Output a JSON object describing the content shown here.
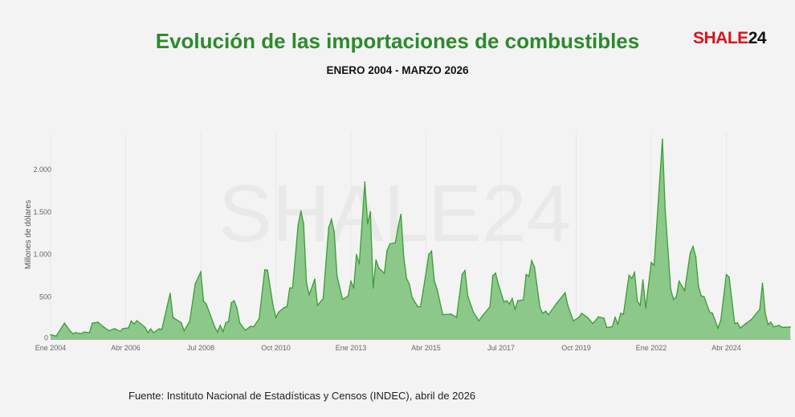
{
  "header": {
    "title": "Evolución de las importaciones de combustibles",
    "subtitle": "ENERO 2004 - MARZO 2026",
    "logo_text": "SHALE24",
    "logo_parts": [
      "SHALE",
      "24"
    ]
  },
  "watermark": "SHALE24",
  "footer": {
    "source": "Fuente: Instituto Nacional de Estadísticas y Censos (INDEC), abril de 2026"
  },
  "colors": {
    "title": "#2c8a2c",
    "line": "#3a9e34",
    "fill": "#8cc88a",
    "logo_red": "#d8141c"
  },
  "chart_data": {
    "type": "area",
    "title": "Evolución de las importaciones de combustibles",
    "subtitle": "ENERO 2004 - MARZO 2026",
    "xlabel": "",
    "ylabel": "Millones de dólares",
    "xlim": [
      "2004-01",
      "2026-03"
    ],
    "ylim": [
      0,
      2400
    ],
    "x_ticks": [
      {
        "date": "2004-01",
        "label": "Ene 2004"
      },
      {
        "date": "2006-04",
        "label": "Abr 2006"
      },
      {
        "date": "2008-07",
        "label": "Jul 2008"
      },
      {
        "date": "2010-10",
        "label": "Oct 2010"
      },
      {
        "date": "2013-01",
        "label": "Ene 2013"
      },
      {
        "date": "2015-04",
        "label": "Abr 2015"
      },
      {
        "date": "2017-07",
        "label": "Jul 2017"
      },
      {
        "date": "2019-10",
        "label": "Oct 2019"
      },
      {
        "date": "2022-01",
        "label": "Ene 2022"
      },
      {
        "date": "2024-04",
        "label": "Abr 2024"
      }
    ],
    "y_ticks": [
      {
        "value": 0,
        "label": "0"
      },
      {
        "value": 500,
        "label": "500"
      },
      {
        "value": 1000,
        "label": "1.000"
      },
      {
        "value": 1500,
        "label": "1.500"
      },
      {
        "value": 2000,
        "label": "2.000"
      }
    ],
    "grid": "vertical-faint",
    "legend": "none",
    "points": [
      [
        "2004-01",
        54
      ],
      [
        "2004-03",
        38
      ],
      [
        "2004-06",
        192
      ],
      [
        "2004-08",
        100
      ],
      [
        "2004-09",
        66
      ],
      [
        "2004-10",
        79
      ],
      [
        "2004-12",
        66
      ],
      [
        "2005-01",
        85
      ],
      [
        "2005-03",
        79
      ],
      [
        "2005-04",
        189
      ],
      [
        "2005-06",
        202
      ],
      [
        "2005-08",
        148
      ],
      [
        "2005-10",
        100
      ],
      [
        "2005-12",
        126
      ],
      [
        "2006-02",
        94
      ],
      [
        "2006-03",
        126
      ],
      [
        "2006-05",
        135
      ],
      [
        "2006-06",
        217
      ],
      [
        "2006-07",
        180
      ],
      [
        "2006-08",
        220
      ],
      [
        "2006-11",
        142
      ],
      [
        "2006-12",
        79
      ],
      [
        "2007-01",
        123
      ],
      [
        "2007-02",
        79
      ],
      [
        "2007-04",
        123
      ],
      [
        "2007-05",
        117
      ],
      [
        "2007-08",
        542
      ],
      [
        "2007-09",
        258
      ],
      [
        "2007-12",
        195
      ],
      [
        "2008-01",
        100
      ],
      [
        "2008-03",
        211
      ],
      [
        "2008-05",
        652
      ],
      [
        "2008-07",
        794
      ],
      [
        "2008-08",
        447
      ],
      [
        "2008-09",
        416
      ],
      [
        "2008-12",
        148
      ],
      [
        "2009-01",
        85
      ],
      [
        "2009-02",
        164
      ],
      [
        "2009-03",
        91
      ],
      [
        "2009-04",
        195
      ],
      [
        "2009-05",
        211
      ],
      [
        "2009-06",
        432
      ],
      [
        "2009-07",
        454
      ],
      [
        "2009-08",
        369
      ],
      [
        "2009-09",
        195
      ],
      [
        "2009-11",
        107
      ],
      [
        "2010-01",
        154
      ],
      [
        "2010-02",
        148
      ],
      [
        "2010-04",
        243
      ],
      [
        "2010-06",
        819
      ],
      [
        "2010-07",
        816
      ],
      [
        "2010-09",
        400
      ],
      [
        "2010-10",
        258
      ],
      [
        "2010-11",
        321
      ],
      [
        "2011-01",
        375
      ],
      [
        "2011-02",
        384
      ],
      [
        "2011-03",
        605
      ],
      [
        "2011-04",
        605
      ],
      [
        "2011-06",
        1345
      ],
      [
        "2011-07",
        1512
      ],
      [
        "2011-08",
        1361
      ],
      [
        "2011-09",
        668
      ],
      [
        "2011-10",
        526
      ],
      [
        "2011-12",
        709
      ],
      [
        "2012-01",
        400
      ],
      [
        "2012-03",
        479
      ],
      [
        "2012-05",
        1314
      ],
      [
        "2012-06",
        1414
      ],
      [
        "2012-07",
        1266
      ],
      [
        "2012-08",
        747
      ],
      [
        "2012-10",
        469
      ],
      [
        "2012-12",
        510
      ],
      [
        "2013-01",
        684
      ],
      [
        "2013-02",
        605
      ],
      [
        "2013-03",
        999
      ],
      [
        "2013-04",
        888
      ],
      [
        "2013-06",
        1855
      ],
      [
        "2013-07",
        1361
      ],
      [
        "2013-08",
        1503
      ],
      [
        "2013-09",
        605
      ],
      [
        "2013-10",
        936
      ],
      [
        "2013-11",
        841
      ],
      [
        "2014-01",
        778
      ],
      [
        "2014-02",
        1046
      ],
      [
        "2014-03",
        1125
      ],
      [
        "2014-05",
        1140
      ],
      [
        "2014-06",
        1330
      ],
      [
        "2014-07",
        1474
      ],
      [
        "2014-08",
        969
      ],
      [
        "2014-09",
        717
      ],
      [
        "2014-10",
        653
      ],
      [
        "2014-11",
        496
      ],
      [
        "2015-01",
        385
      ],
      [
        "2015-02",
        385
      ],
      [
        "2015-03",
        575
      ],
      [
        "2015-05",
        1001
      ],
      [
        "2015-06",
        1039
      ],
      [
        "2015-07",
        685
      ],
      [
        "2015-08",
        590
      ],
      [
        "2015-10",
        290
      ],
      [
        "2016-01",
        297
      ],
      [
        "2016-03",
        259
      ],
      [
        "2016-05",
        764
      ],
      [
        "2016-06",
        811
      ],
      [
        "2016-07",
        511
      ],
      [
        "2016-09",
        322
      ],
      [
        "2016-11",
        218
      ],
      [
        "2016-12",
        265
      ],
      [
        "2017-03",
        385
      ],
      [
        "2017-04",
        748
      ],
      [
        "2017-05",
        780
      ],
      [
        "2017-06",
        653
      ],
      [
        "2017-08",
        439
      ],
      [
        "2017-09",
        455
      ],
      [
        "2017-10",
        417
      ],
      [
        "2017-11",
        480
      ],
      [
        "2017-12",
        354
      ],
      [
        "2018-01",
        455
      ],
      [
        "2018-03",
        464
      ],
      [
        "2018-04",
        764
      ],
      [
        "2018-05",
        742
      ],
      [
        "2018-06",
        928
      ],
      [
        "2018-07",
        849
      ],
      [
        "2018-09",
        369
      ],
      [
        "2018-10",
        306
      ],
      [
        "2018-11",
        331
      ],
      [
        "2018-12",
        290
      ],
      [
        "2019-03",
        426
      ],
      [
        "2019-06",
        549
      ],
      [
        "2019-07",
        401
      ],
      [
        "2019-09",
        218
      ],
      [
        "2019-11",
        259
      ],
      [
        "2019-12",
        306
      ],
      [
        "2020-02",
        259
      ],
      [
        "2020-04",
        186
      ],
      [
        "2020-06",
        265
      ],
      [
        "2020-08",
        249
      ],
      [
        "2020-09",
        139
      ],
      [
        "2020-11",
        148
      ],
      [
        "2020-12",
        259
      ],
      [
        "2021-01",
        180
      ],
      [
        "2021-02",
        306
      ],
      [
        "2021-03",
        297
      ],
      [
        "2021-05",
        755
      ],
      [
        "2021-06",
        717
      ],
      [
        "2021-07",
        789
      ],
      [
        "2021-08",
        448
      ],
      [
        "2021-09",
        401
      ],
      [
        "2021-10",
        701
      ],
      [
        "2021-11",
        369
      ],
      [
        "2022-01",
        906
      ],
      [
        "2022-02",
        874
      ],
      [
        "2022-05",
        2358
      ],
      [
        "2022-06",
        1537
      ],
      [
        "2022-08",
        590
      ],
      [
        "2022-09",
        470
      ],
      [
        "2022-10",
        496
      ],
      [
        "2022-11",
        685
      ],
      [
        "2023-01",
        575
      ],
      [
        "2023-03",
        1017
      ],
      [
        "2023-04",
        1095
      ],
      [
        "2023-05",
        975
      ],
      [
        "2023-06",
        622
      ],
      [
        "2023-07",
        511
      ],
      [
        "2023-08",
        502
      ],
      [
        "2023-10",
        322
      ],
      [
        "2023-11",
        306
      ],
      [
        "2024-01",
        133
      ],
      [
        "2024-02",
        227
      ],
      [
        "2024-04",
        764
      ],
      [
        "2024-05",
        732
      ],
      [
        "2024-07",
        186
      ],
      [
        "2024-08",
        196
      ],
      [
        "2024-09",
        133
      ],
      [
        "2024-11",
        186
      ],
      [
        "2025-01",
        234
      ],
      [
        "2025-04",
        354
      ],
      [
        "2025-05",
        660
      ],
      [
        "2025-06",
        306
      ],
      [
        "2025-07",
        174
      ],
      [
        "2025-08",
        202
      ],
      [
        "2025-09",
        148
      ],
      [
        "2025-11",
        164
      ],
      [
        "2025-12",
        142
      ],
      [
        "2026-01",
        142
      ],
      [
        "2026-03",
        145
      ]
    ]
  }
}
